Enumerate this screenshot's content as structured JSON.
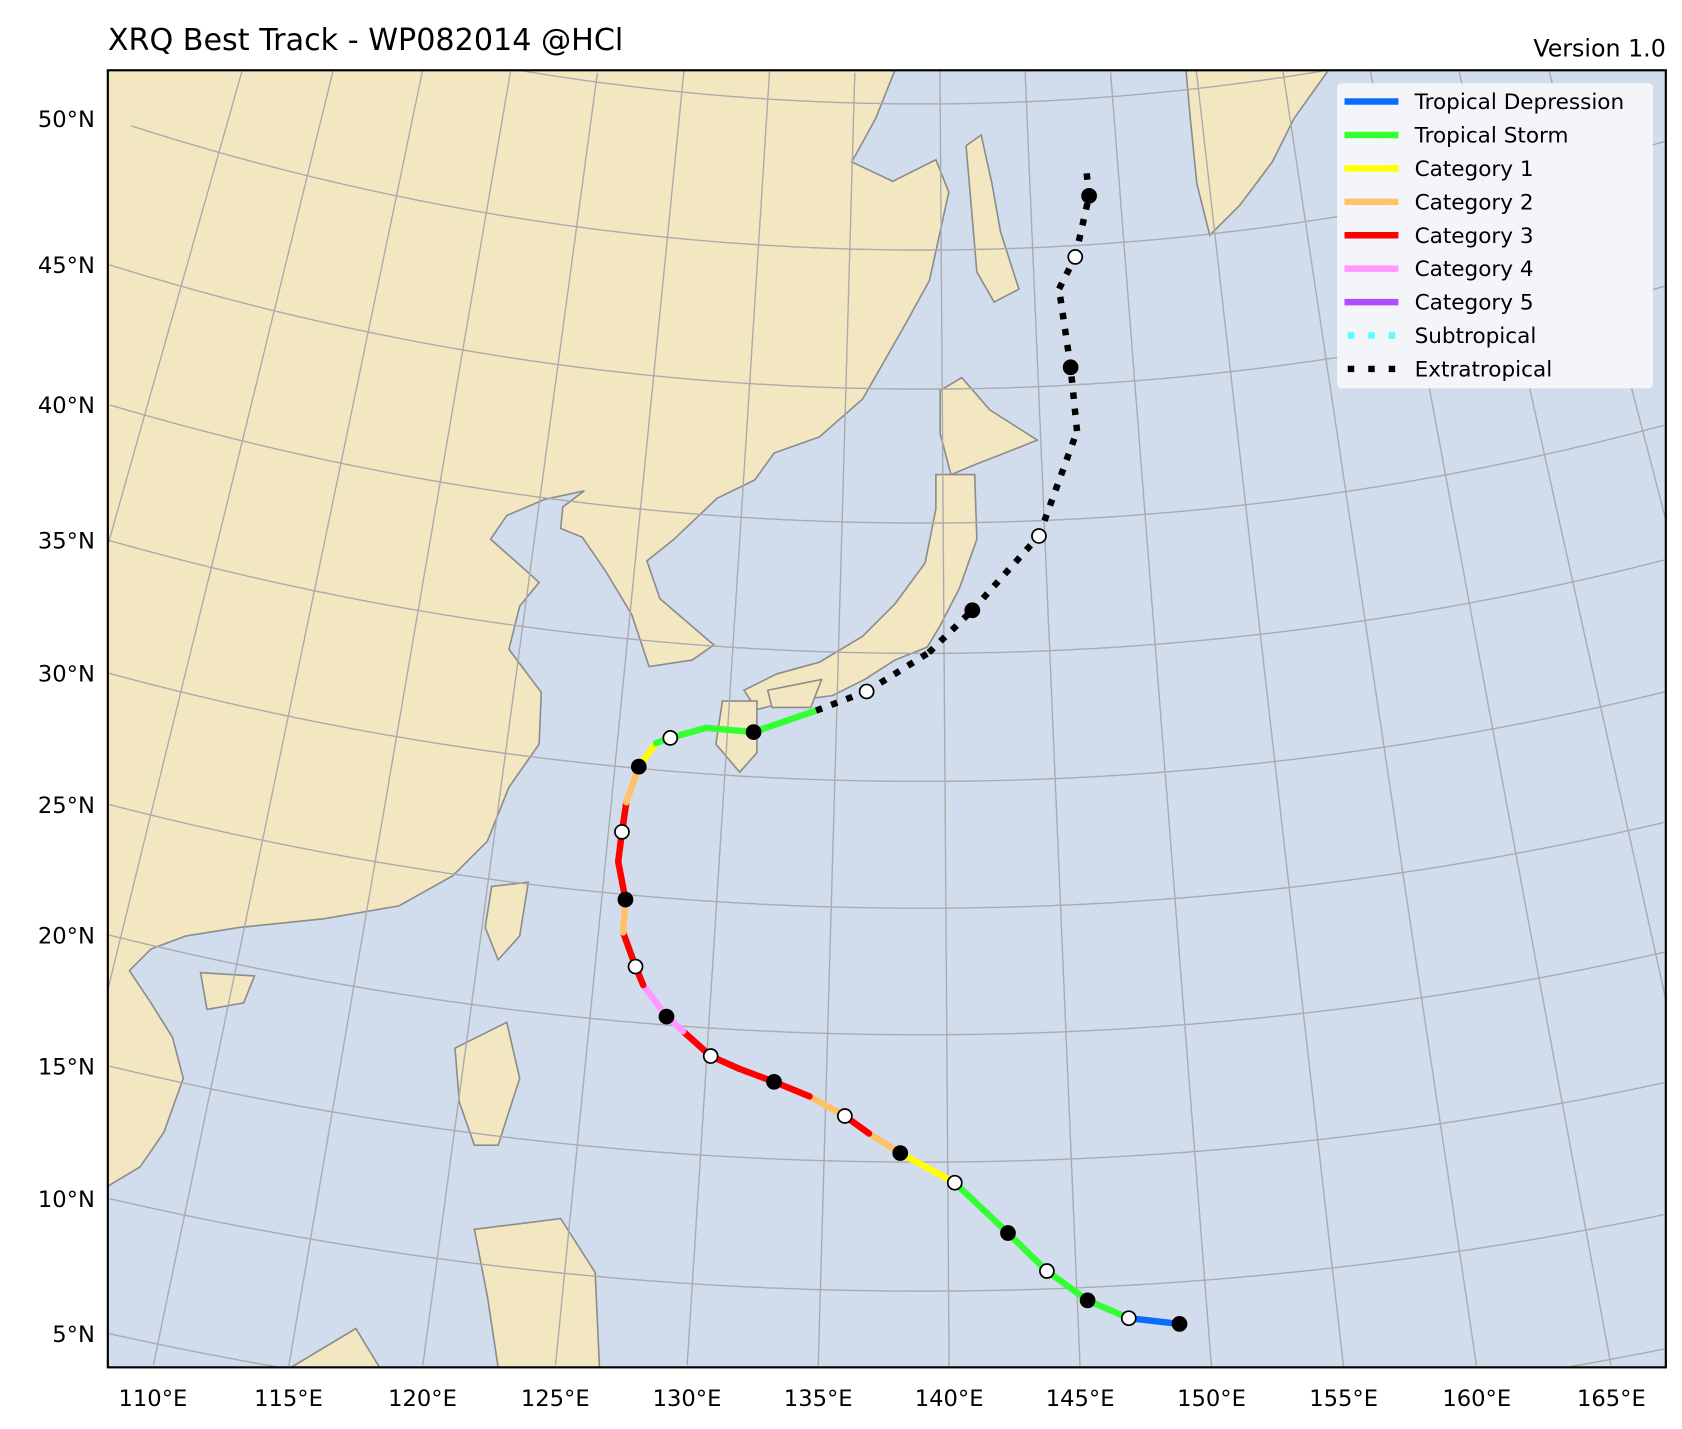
{
  "header": {
    "title": "XRQ Best Track - WP082014  @HCl",
    "version": "Version 1.0"
  },
  "colors": {
    "ocean": "#d1dced",
    "land": "#f3e7c2",
    "coast": "#8c8c8c",
    "grid": "#ababab"
  },
  "axes": {
    "lon_labels": [
      {
        "lon": 110,
        "text": "110°E"
      },
      {
        "lon": 115,
        "text": "115°E"
      },
      {
        "lon": 120,
        "text": "120°E"
      },
      {
        "lon": 125,
        "text": "125°E"
      },
      {
        "lon": 130,
        "text": "130°E"
      },
      {
        "lon": 135,
        "text": "135°E"
      },
      {
        "lon": 140,
        "text": "140°E"
      },
      {
        "lon": 145,
        "text": "145°E"
      },
      {
        "lon": 150,
        "text": "150°E"
      },
      {
        "lon": 155,
        "text": "155°E"
      },
      {
        "lon": 160,
        "text": "160°E"
      },
      {
        "lon": 165,
        "text": "165°E"
      }
    ],
    "lat_labels": [
      {
        "lat": 5,
        "text": "5°N"
      },
      {
        "lat": 10,
        "text": "10°N"
      },
      {
        "lat": 15,
        "text": "15°N"
      },
      {
        "lat": 20,
        "text": "20°N"
      },
      {
        "lat": 25,
        "text": "25°N"
      },
      {
        "lat": 30,
        "text": "30°N"
      },
      {
        "lat": 35,
        "text": "35°N"
      },
      {
        "lat": 40,
        "text": "40°N"
      },
      {
        "lat": 45,
        "text": "45°N"
      },
      {
        "lat": 50,
        "text": "50°N"
      }
    ]
  },
  "legend": {
    "position": "top-right",
    "items": [
      {
        "label": "Tropical Depression",
        "color": "#0a6cff",
        "style": "solid"
      },
      {
        "label": "Tropical Storm",
        "color": "#33ff33",
        "style": "solid"
      },
      {
        "label": "Category 1",
        "color": "#ffff00",
        "style": "solid"
      },
      {
        "label": "Category 2",
        "color": "#ffc266",
        "style": "solid"
      },
      {
        "label": "Category 3",
        "color": "#ff0000",
        "style": "solid"
      },
      {
        "label": "Category 4",
        "color": "#ff99ff",
        "style": "solid"
      },
      {
        "label": "Category 5",
        "color": "#b04cff",
        "style": "solid"
      },
      {
        "label": "Subtropical",
        "color": "#55ffff",
        "style": "dotted"
      },
      {
        "label": "Extratropical",
        "color": "#000000",
        "style": "dotted"
      }
    ]
  },
  "track": {
    "storm_id": "WP082014",
    "points": [
      {
        "lat": 8.4,
        "lon": 148.9,
        "marker": "filled",
        "next": "TD"
      },
      {
        "lat": 8.74,
        "lon": 146.96,
        "marker": "open",
        "next": "TS"
      },
      {
        "lat": 9.5,
        "lon": 145.4,
        "marker": "filled",
        "next": "TS"
      },
      {
        "lat": 10.69,
        "lon": 143.86,
        "marker": "open",
        "next": "TS"
      },
      {
        "lat": 12.2,
        "lon": 142.37,
        "marker": "filled",
        "next": "TS"
      },
      {
        "lat": 14.19,
        "lon": 140.28,
        "marker": "open",
        "next": "C1"
      },
      {
        "lat": 15.35,
        "lon": 138.08,
        "marker": "filled",
        "next": "C2"
      },
      {
        "lat": 16.1,
        "lon": 136.8,
        "marker": "none",
        "next": "C3"
      },
      {
        "lat": 16.77,
        "lon": 135.8,
        "marker": "open",
        "next": "C2"
      },
      {
        "lat": 17.5,
        "lon": 134.33,
        "marker": "none",
        "next": "C3"
      },
      {
        "lat": 18.02,
        "lon": 132.84,
        "marker": "filled",
        "next": "C3"
      },
      {
        "lat": 18.47,
        "lon": 131.36,
        "marker": "none",
        "next": "C3"
      },
      {
        "lat": 18.9,
        "lon": 130.16,
        "marker": "open",
        "next": "C3"
      },
      {
        "lat": 19.8,
        "lon": 128.94,
        "marker": "none",
        "next": "C4"
      },
      {
        "lat": 20.33,
        "lon": 128.2,
        "marker": "filled",
        "next": "C4"
      },
      {
        "lat": 21.5,
        "lon": 127.11,
        "marker": "none",
        "next": "C3"
      },
      {
        "lat": 22.2,
        "lon": 126.72,
        "marker": "open",
        "next": "C3"
      },
      {
        "lat": 23.5,
        "lon": 126.06,
        "marker": "none",
        "next": "C2"
      },
      {
        "lat": 24.8,
        "lon": 126.03,
        "marker": "filled",
        "next": "C3"
      },
      {
        "lat": 26.27,
        "lon": 125.56,
        "marker": "none",
        "next": "C3"
      },
      {
        "lat": 27.45,
        "lon": 125.6,
        "marker": "open",
        "next": "C3"
      },
      {
        "lat": 28.63,
        "lon": 125.67,
        "marker": "none",
        "next": "C2"
      },
      {
        "lat": 30.07,
        "lon": 126.08,
        "marker": "filled",
        "next": "C1"
      },
      {
        "lat": 31.05,
        "lon": 126.77,
        "marker": "none",
        "next": "TS"
      },
      {
        "lat": 31.3,
        "lon": 127.4,
        "marker": "open",
        "next": "TS"
      },
      {
        "lat": 31.8,
        "lon": 129.0,
        "marker": "none",
        "next": "TS"
      },
      {
        "lat": 31.75,
        "lon": 131.2,
        "marker": "filled",
        "next": "TS"
      },
      {
        "lat": 32.7,
        "lon": 134.04,
        "marker": "none",
        "next": "EX"
      },
      {
        "lat": 33.5,
        "lon": 136.37,
        "marker": "open",
        "next": "EX"
      },
      {
        "lat": 35.03,
        "lon": 139.28,
        "marker": "none",
        "next": "EX"
      },
      {
        "lat": 36.65,
        "lon": 141.37,
        "marker": "filled",
        "next": "EX"
      },
      {
        "lat": 39.42,
        "lon": 144.71,
        "marker": "open",
        "next": "EX"
      },
      {
        "lat": 43.29,
        "lon": 146.87,
        "marker": "none",
        "next": "EX"
      },
      {
        "lat": 45.65,
        "lon": 146.72,
        "marker": "filled",
        "next": "EX"
      },
      {
        "lat": 48.5,
        "lon": 146.33,
        "marker": "none",
        "next": "EX"
      },
      {
        "lat": 49.6,
        "lon": 147.3,
        "marker": "open",
        "next": "EX"
      },
      {
        "lat": 51.7,
        "lon": 148.27,
        "marker": "filled",
        "next": "EX"
      },
      {
        "lat": 52.7,
        "lon": 148.2,
        "marker": "none",
        "next": null
      }
    ],
    "category_colors": {
      "TD": "#0a6cff",
      "TS": "#33ff33",
      "C1": "#ffff00",
      "C2": "#ffc266",
      "C3": "#ff0000",
      "C4": "#ff99ff",
      "C5": "#b04cff",
      "SS": "#55ffff",
      "EX": "#000000"
    }
  }
}
